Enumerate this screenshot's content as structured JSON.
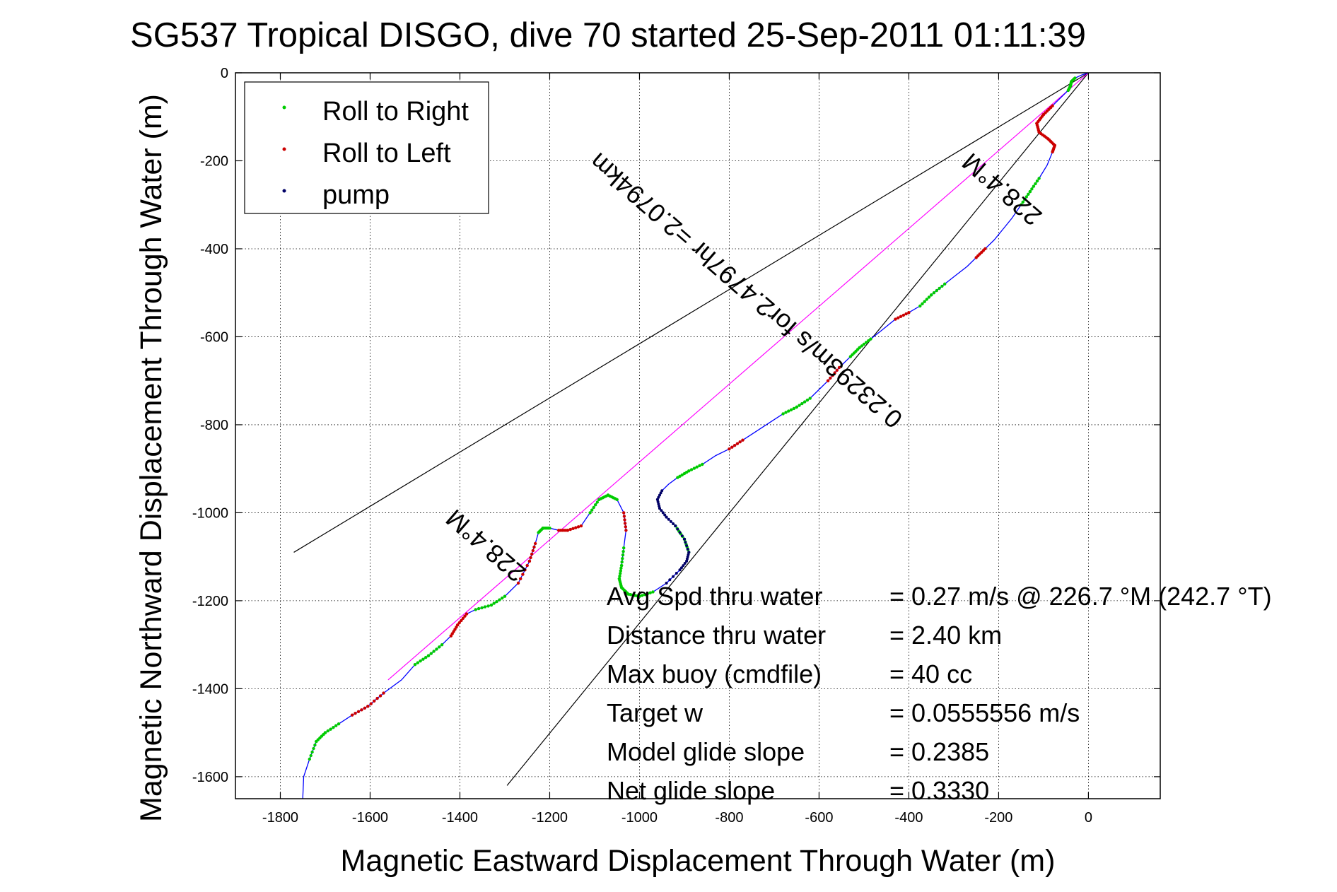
{
  "chart_data": {
    "type": "line",
    "title": "SG537 Tropical DISGO, dive 70 started 25-Sep-2011 01:11:39",
    "xlabel": "Magnetic Eastward Displacement Through Water (m)",
    "ylabel": "Magnetic Northward Displacement Through Water (m)",
    "xlim": [
      -1900,
      160
    ],
    "ylim": [
      -1650,
      0
    ],
    "xticks": [
      -1800,
      -1600,
      -1400,
      -1200,
      -1000,
      -800,
      -600,
      -400,
      -200,
      0
    ],
    "yticks": [
      0,
      -200,
      -400,
      -600,
      -800,
      -1000,
      -1200,
      -1400,
      -1600
    ],
    "grid": true,
    "legend_position": "top-left",
    "legend": [
      {
        "label": "Roll to Right",
        "color": "#00cc00"
      },
      {
        "label": "Roll to Left",
        "color": "#cc0000"
      },
      {
        "label": "pump",
        "color": "#000066"
      }
    ],
    "track_color": "#0000ff",
    "reference_line_color": "#ff00ff",
    "cone_line_color": "#000000",
    "track": {
      "x": [
        -1750,
        -1748,
        -1735,
        -1720,
        -1700,
        -1670,
        -1640,
        -1605,
        -1570,
        -1530,
        -1500,
        -1470,
        -1440,
        -1420,
        -1405,
        -1385,
        -1365,
        -1330,
        -1300,
        -1270,
        -1245,
        -1232,
        -1225,
        -1215,
        -1200,
        -1180,
        -1160,
        -1130,
        -1110,
        -1090,
        -1070,
        -1050,
        -1035,
        -1030,
        -1035,
        -1040,
        -1045,
        -1040,
        -1025,
        -1000,
        -970,
        -940,
        -910,
        -895,
        -890,
        -900,
        -920,
        -940,
        -955,
        -960,
        -950,
        -935,
        -915,
        -890,
        -860,
        -830,
        -800,
        -770,
        -740,
        -710,
        -680,
        -650,
        -620,
        -600,
        -580,
        -555,
        -530,
        -510,
        -485,
        -460,
        -430,
        -400,
        -375,
        -350,
        -320,
        -295,
        -270,
        -250,
        -230,
        -210,
        -190,
        -170,
        -150,
        -130,
        -110,
        -92,
        -80,
        -75,
        -90,
        -110,
        -115,
        -100,
        -80,
        -60,
        -45,
        -40,
        -38,
        -30,
        -15,
        0
      ],
      "y": [
        -1650,
        -1600,
        -1560,
        -1520,
        -1500,
        -1480,
        -1460,
        -1440,
        -1410,
        -1380,
        -1345,
        -1325,
        -1300,
        -1280,
        -1255,
        -1230,
        -1220,
        -1210,
        -1190,
        -1160,
        -1110,
        -1070,
        -1045,
        -1035,
        -1035,
        -1040,
        -1040,
        -1030,
        -1000,
        -970,
        -960,
        -970,
        -1000,
        -1040,
        -1080,
        -1120,
        -1150,
        -1170,
        -1185,
        -1190,
        -1180,
        -1160,
        -1130,
        -1110,
        -1090,
        -1060,
        -1030,
        -1010,
        -990,
        -970,
        -950,
        -935,
        -920,
        -905,
        -890,
        -870,
        -855,
        -835,
        -815,
        -795,
        -775,
        -760,
        -740,
        -720,
        -700,
        -670,
        -645,
        -625,
        -605,
        -585,
        -560,
        -545,
        -530,
        -505,
        -480,
        -460,
        -440,
        -420,
        -400,
        -380,
        -355,
        -330,
        -300,
        -270,
        -240,
        -210,
        -180,
        -165,
        -150,
        -135,
        -115,
        -95,
        -75,
        -55,
        -40,
        -30,
        -20,
        -12,
        -5,
        0
      ]
    },
    "reference_line": {
      "x": [
        -1560,
        0
      ],
      "y": [
        -1380,
        0
      ]
    },
    "cone_lines": [
      {
        "x": [
          -1770,
          0
        ],
        "y": [
          -1090,
          0
        ]
      },
      {
        "x": [
          -1295,
          0
        ],
        "y": [
          -1620,
          0
        ]
      }
    ],
    "roll_right_segments": [
      [
        2,
        5
      ],
      [
        10,
        12
      ],
      [
        16,
        18
      ],
      [
        22,
        24
      ],
      [
        28,
        31
      ],
      [
        34,
        40
      ],
      [
        44,
        46
      ],
      [
        52,
        54
      ],
      [
        60,
        62
      ],
      [
        66,
        68
      ],
      [
        72,
        74
      ],
      [
        82,
        84
      ],
      [
        94,
        97
      ]
    ],
    "roll_left_segments": [
      [
        6,
        8
      ],
      [
        13,
        15
      ],
      [
        19,
        21
      ],
      [
        25,
        27
      ],
      [
        32,
        33
      ],
      [
        56,
        57
      ],
      [
        64,
        65
      ],
      [
        70,
        71
      ],
      [
        77,
        78
      ],
      [
        86,
        92
      ]
    ],
    "pump_segment": [
      41,
      50
    ],
    "annotations": [
      {
        "text": "228.4°M",
        "x": -1330,
        "y": -1060,
        "angle": 41
      },
      {
        "text": "228.4°M",
        "x": -180,
        "y": -250,
        "angle": 41
      },
      {
        "text": "0.23293m/s for2.4797hr =2.0794km",
        "x": -750,
        "y": -480,
        "angle": 41
      }
    ]
  },
  "stats": [
    {
      "label": "Avg Spd thru water",
      "value": "=  0.27 m/s @ 226.7 °M (242.7 °T)"
    },
    {
      "label": "Distance thru water",
      "value": "=  2.40 km"
    },
    {
      "label": "Max buoy (cmdfile)",
      "value": "= 40 cc"
    },
    {
      "label": "Target w",
      "value": "= 0.0555556 m/s"
    },
    {
      "label": "Model glide slope",
      "value": "= 0.2385"
    },
    {
      "label": "Net glide slope",
      "value": "= 0.3330"
    }
  ]
}
